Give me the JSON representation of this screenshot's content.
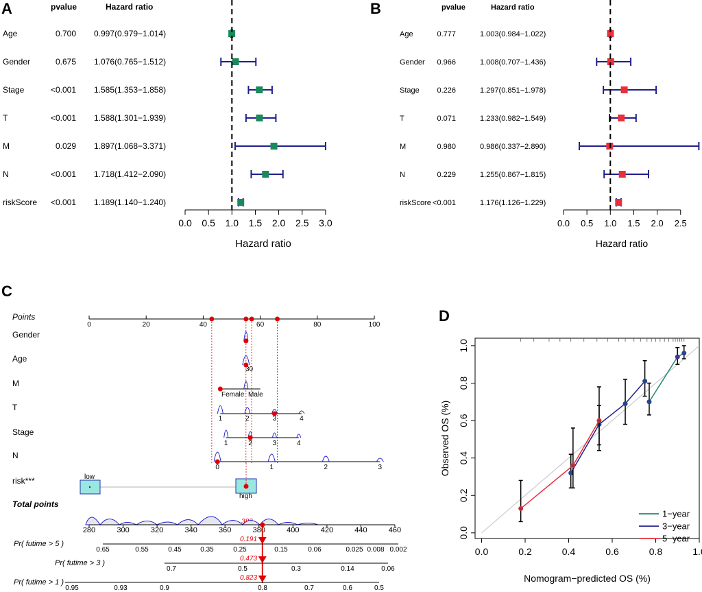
{
  "forest_common": {
    "pvalue_header": "pvalue",
    "hr_header": "Hazard ratio",
    "axis_label": "Hazard ratio"
  },
  "panel_a": {
    "letter": "A",
    "box_color": "#1a8a5a",
    "line_color": "#1f1f8c"
  },
  "panel_b": {
    "letter": "B",
    "box_color": "#e8303a",
    "line_color": "#1f1f8c"
  },
  "panel_c": {
    "letter": "C",
    "points_label": "Points",
    "total_points_label": "Total points",
    "total_points_value": "382",
    "point_color": "#e00000",
    "curve_color": "#2222cc",
    "variables": [
      {
        "label": "Gender"
      },
      {
        "label": "Age"
      },
      {
        "label": "M"
      },
      {
        "label": "T"
      },
      {
        "label": "Stage"
      },
      {
        "label": "N"
      },
      {
        "label": "risk***"
      }
    ],
    "age_tick": "30",
    "gender_ticks": [
      "Female",
      "Male"
    ],
    "risk_low_label": "low",
    "risk_high_label": "high",
    "predictions": [
      {
        "label": "Pr( futime > 5 )",
        "value": "0.191"
      },
      {
        "label": "Pr( futime > 3 )",
        "value": "0.473"
      },
      {
        "label": "Pr( futime > 1 )",
        "value": "0.823"
      }
    ]
  },
  "panel_d": {
    "letter": "D"
  },
  "chart_data": [
    {
      "type": "forest",
      "panel": "A",
      "title": "",
      "xlabel": "Hazard ratio",
      "xlim": [
        0,
        3.0
      ],
      "ticks": [
        0.0,
        0.5,
        1.0,
        1.5,
        2.0,
        2.5,
        3.0
      ],
      "tick_labels": [
        "0.0",
        "0.5",
        "1.0",
        "1.5",
        "2.0",
        "2.5",
        "3.0"
      ],
      "reference_line": 1.0,
      "rows": [
        {
          "name": "Age",
          "pvalue": "0.700",
          "hr_text": "0.997(0.979−1.014)",
          "hr": 0.997,
          "lower": 0.979,
          "upper": 1.014
        },
        {
          "name": "Gender",
          "pvalue": "0.675",
          "hr_text": "1.076(0.765−1.512)",
          "hr": 1.076,
          "lower": 0.765,
          "upper": 1.512
        },
        {
          "name": "Stage",
          "pvalue": "<0.001",
          "hr_text": "1.585(1.353−1.858)",
          "hr": 1.585,
          "lower": 1.353,
          "upper": 1.858
        },
        {
          "name": "T",
          "pvalue": "<0.001",
          "hr_text": "1.588(1.301−1.939)",
          "hr": 1.588,
          "lower": 1.301,
          "upper": 1.939
        },
        {
          "name": "M",
          "pvalue": "0.029",
          "hr_text": "1.897(1.068−3.371)",
          "hr": 1.897,
          "lower": 1.068,
          "upper": 3.371
        },
        {
          "name": "N",
          "pvalue": "<0.001",
          "hr_text": "1.718(1.412−2.090)",
          "hr": 1.718,
          "lower": 1.412,
          "upper": 2.09
        },
        {
          "name": "riskScore",
          "pvalue": "<0.001",
          "hr_text": "1.189(1.140−1.240)",
          "hr": 1.189,
          "lower": 1.14,
          "upper": 1.24
        }
      ]
    },
    {
      "type": "forest",
      "panel": "B",
      "title": "",
      "xlabel": "Hazard ratio",
      "xlim": [
        0,
        2.9
      ],
      "ticks": [
        0.0,
        0.5,
        1.0,
        1.5,
        2.0,
        2.5
      ],
      "tick_labels": [
        "0.0",
        "0.5",
        "1.0",
        "1.5",
        "2.0",
        "2.5"
      ],
      "reference_line": 1.0,
      "rows": [
        {
          "name": "Age",
          "pvalue": "0.777",
          "hr_text": "1.003(0.984−1.022)",
          "hr": 1.003,
          "lower": 0.984,
          "upper": 1.022
        },
        {
          "name": "Gender",
          "pvalue": "0.966",
          "hr_text": "1.008(0.707−1.436)",
          "hr": 1.008,
          "lower": 0.707,
          "upper": 1.436
        },
        {
          "name": "Stage",
          "pvalue": "0.226",
          "hr_text": "1.297(0.851−1.978)",
          "hr": 1.297,
          "lower": 0.851,
          "upper": 1.978
        },
        {
          "name": "T",
          "pvalue": "0.071",
          "hr_text": "1.233(0.982−1.549)",
          "hr": 1.233,
          "lower": 0.982,
          "upper": 1.549
        },
        {
          "name": "M",
          "pvalue": "0.980",
          "hr_text": "0.986(0.337−2.890)",
          "hr": 0.986,
          "lower": 0.337,
          "upper": 2.89
        },
        {
          "name": "N",
          "pvalue": "0.229",
          "hr_text": "1.255(0.867−1.815)",
          "hr": 1.255,
          "lower": 0.867,
          "upper": 1.815
        },
        {
          "name": "riskScore",
          "pvalue": "<0.001",
          "hr_text": "1.176(1.126−1.229)",
          "hr": 1.176,
          "lower": 1.126,
          "upper": 1.229
        }
      ]
    },
    {
      "type": "nomogram",
      "panel": "C",
      "points_scale": {
        "min": 0,
        "max": 100,
        "ticks": [
          0,
          20,
          40,
          60,
          80,
          100
        ]
      },
      "total_points_scale": {
        "min": 280,
        "max": 460,
        "ticks": [
          280,
          300,
          320,
          340,
          360,
          380,
          400,
          420,
          440,
          460
        ]
      },
      "selected_total_points": 382,
      "variable_points": [
        43,
        55,
        57,
        66
      ],
      "T_ticks": [
        "1",
        "2",
        "3",
        "4"
      ],
      "stage_ticks": [
        "1",
        "2",
        "3",
        "4"
      ],
      "N_ticks": [
        "0",
        "1",
        "2",
        "3"
      ],
      "prob_scales": [
        {
          "label": "Pr( futime > 5 )",
          "predicted": 0.191,
          "ticks": [
            "0.65",
            "0.55",
            "0.45",
            "0.35",
            "0.25",
            "0.15",
            "0.06",
            "0.025",
            "0.008",
            "0.002"
          ]
        },
        {
          "label": "Pr( futime > 3 )",
          "predicted": 0.473,
          "ticks": [
            "0.7",
            "0.5",
            "0.3",
            "0.14",
            "0.06"
          ]
        },
        {
          "label": "Pr( futime > 1 )",
          "predicted": 0.823,
          "ticks": [
            "0.95",
            "0.93",
            "0.9",
            "0.8",
            "0.7",
            "0.6",
            "0.5"
          ]
        }
      ]
    },
    {
      "type": "line",
      "panel": "D",
      "title": "",
      "xlabel": "Nomogram−predicted OS (%)",
      "ylabel": "Observed OS (%)",
      "xlim": [
        -0.03,
        1.0
      ],
      "ylim": [
        -0.03,
        1.04
      ],
      "xticks": [
        "0.0",
        "0.2",
        "0.4",
        "0.6",
        "0.8",
        "1.0"
      ],
      "yticks": [
        "0.0",
        "0.2",
        "0.4",
        "0.6",
        "0.8",
        "1.0"
      ],
      "legend_position": "bottom-right",
      "series": [
        {
          "name": "1−year",
          "color": "#1a8a6e",
          "x": [
            0.77,
            0.9,
            0.93
          ],
          "y": [
            0.7,
            0.94,
            0.96
          ],
          "lower": [
            0.63,
            0.9,
            0.93
          ],
          "upper": [
            0.8,
            0.99,
            1.0
          ]
        },
        {
          "name": "3−year",
          "color": "#1f1f8c",
          "x": [
            0.41,
            0.54,
            0.66,
            0.75
          ],
          "y": [
            0.32,
            0.58,
            0.69,
            0.81
          ],
          "lower": [
            0.24,
            0.47,
            0.58,
            0.73
          ],
          "upper": [
            0.42,
            0.68,
            0.82,
            0.92
          ]
        },
        {
          "name": "5−year",
          "color": "#e8303a",
          "x": [
            0.18,
            0.42,
            0.54
          ],
          "y": [
            0.13,
            0.36,
            0.6
          ],
          "lower": [
            0.06,
            0.24,
            0.44
          ],
          "upper": [
            0.28,
            0.56,
            0.78
          ]
        }
      ]
    }
  ]
}
